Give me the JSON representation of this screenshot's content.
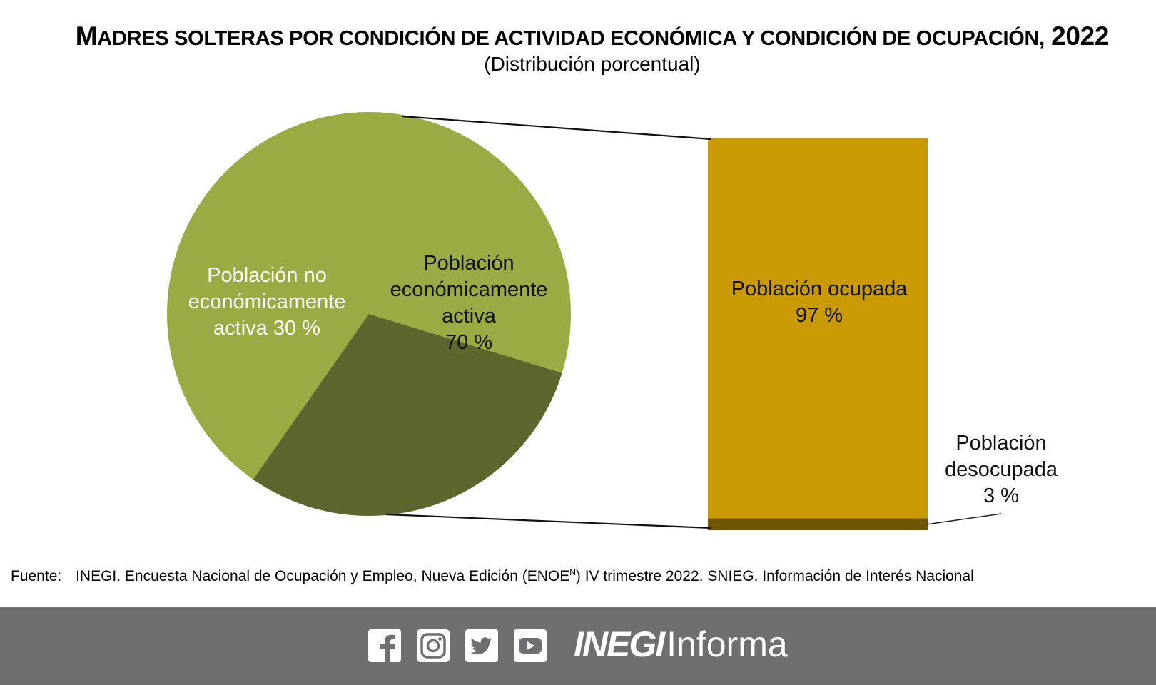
{
  "chart_data": {
    "type": "pie",
    "title": "Madres solteras por condición de actividad económica y condición de ocupación, 2022",
    "subtitle": "(Distribución porcentual)",
    "pie": {
      "slices": [
        {
          "label_lines": [
            "Población",
            "económicamente",
            "activa",
            "70 %"
          ],
          "value": 70,
          "color": "#9aab43"
        },
        {
          "label_lines": [
            "Población no",
            "económicamente",
            "activa 30 %"
          ],
          "value": 30,
          "color": "#5d662d"
        }
      ]
    },
    "breakdown_bar": {
      "of_slice": "Población económicamente activa",
      "segments": [
        {
          "label_lines": [
            "Población ocupada",
            "97 %"
          ],
          "value": 97,
          "color": "#c99a04"
        },
        {
          "label_lines": [
            "Población",
            "desocupada",
            "3 %"
          ],
          "value": 3,
          "color": "#725607"
        }
      ]
    }
  },
  "source": {
    "label": "Fuente:",
    "text_before_sup": "INEGI. Encuesta Nacional de Ocupación y Empleo, Nueva Edición (ENOE",
    "sup": "N",
    "text_after_sup": ") IV trimestre 2022. SNIEG. Información de Interés Nacional"
  },
  "footer": {
    "background": "#6e6f71",
    "icons": [
      "facebook-icon",
      "instagram-icon",
      "twitter-icon",
      "youtube-icon"
    ],
    "brand_bold": "INEGI",
    "brand_light": "Informa"
  }
}
